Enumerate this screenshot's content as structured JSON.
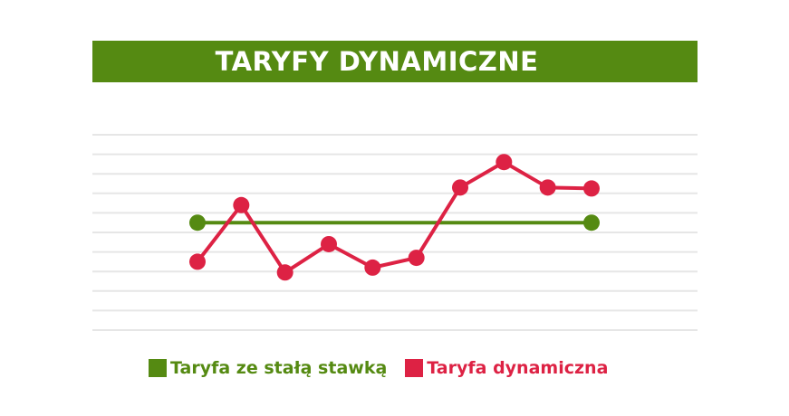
{
  "chart_data": {
    "type": "line",
    "title": "TARYFY DYNAMICZNE",
    "xlabel": "",
    "ylabel": "",
    "x": [
      1,
      2,
      3,
      4,
      5,
      6,
      7,
      8,
      9,
      10
    ],
    "series": [
      {
        "name": "Taryfa ze stałą stawką",
        "color": "#558a12",
        "x": [
          1,
          10
        ],
        "values": [
          5.5,
          5.5
        ]
      },
      {
        "name": "Taryfa dynamiczna",
        "color": "#dd2244",
        "x": [
          1,
          2,
          3,
          4,
          5,
          6,
          7,
          8,
          9,
          10
        ],
        "values": [
          3.5,
          6.4,
          2.95,
          4.4,
          3.2,
          3.7,
          7.3,
          8.6,
          7.3,
          7.25
        ]
      }
    ],
    "ylim": [
      0,
      10
    ],
    "grid": true,
    "legend_position": "bottom"
  }
}
